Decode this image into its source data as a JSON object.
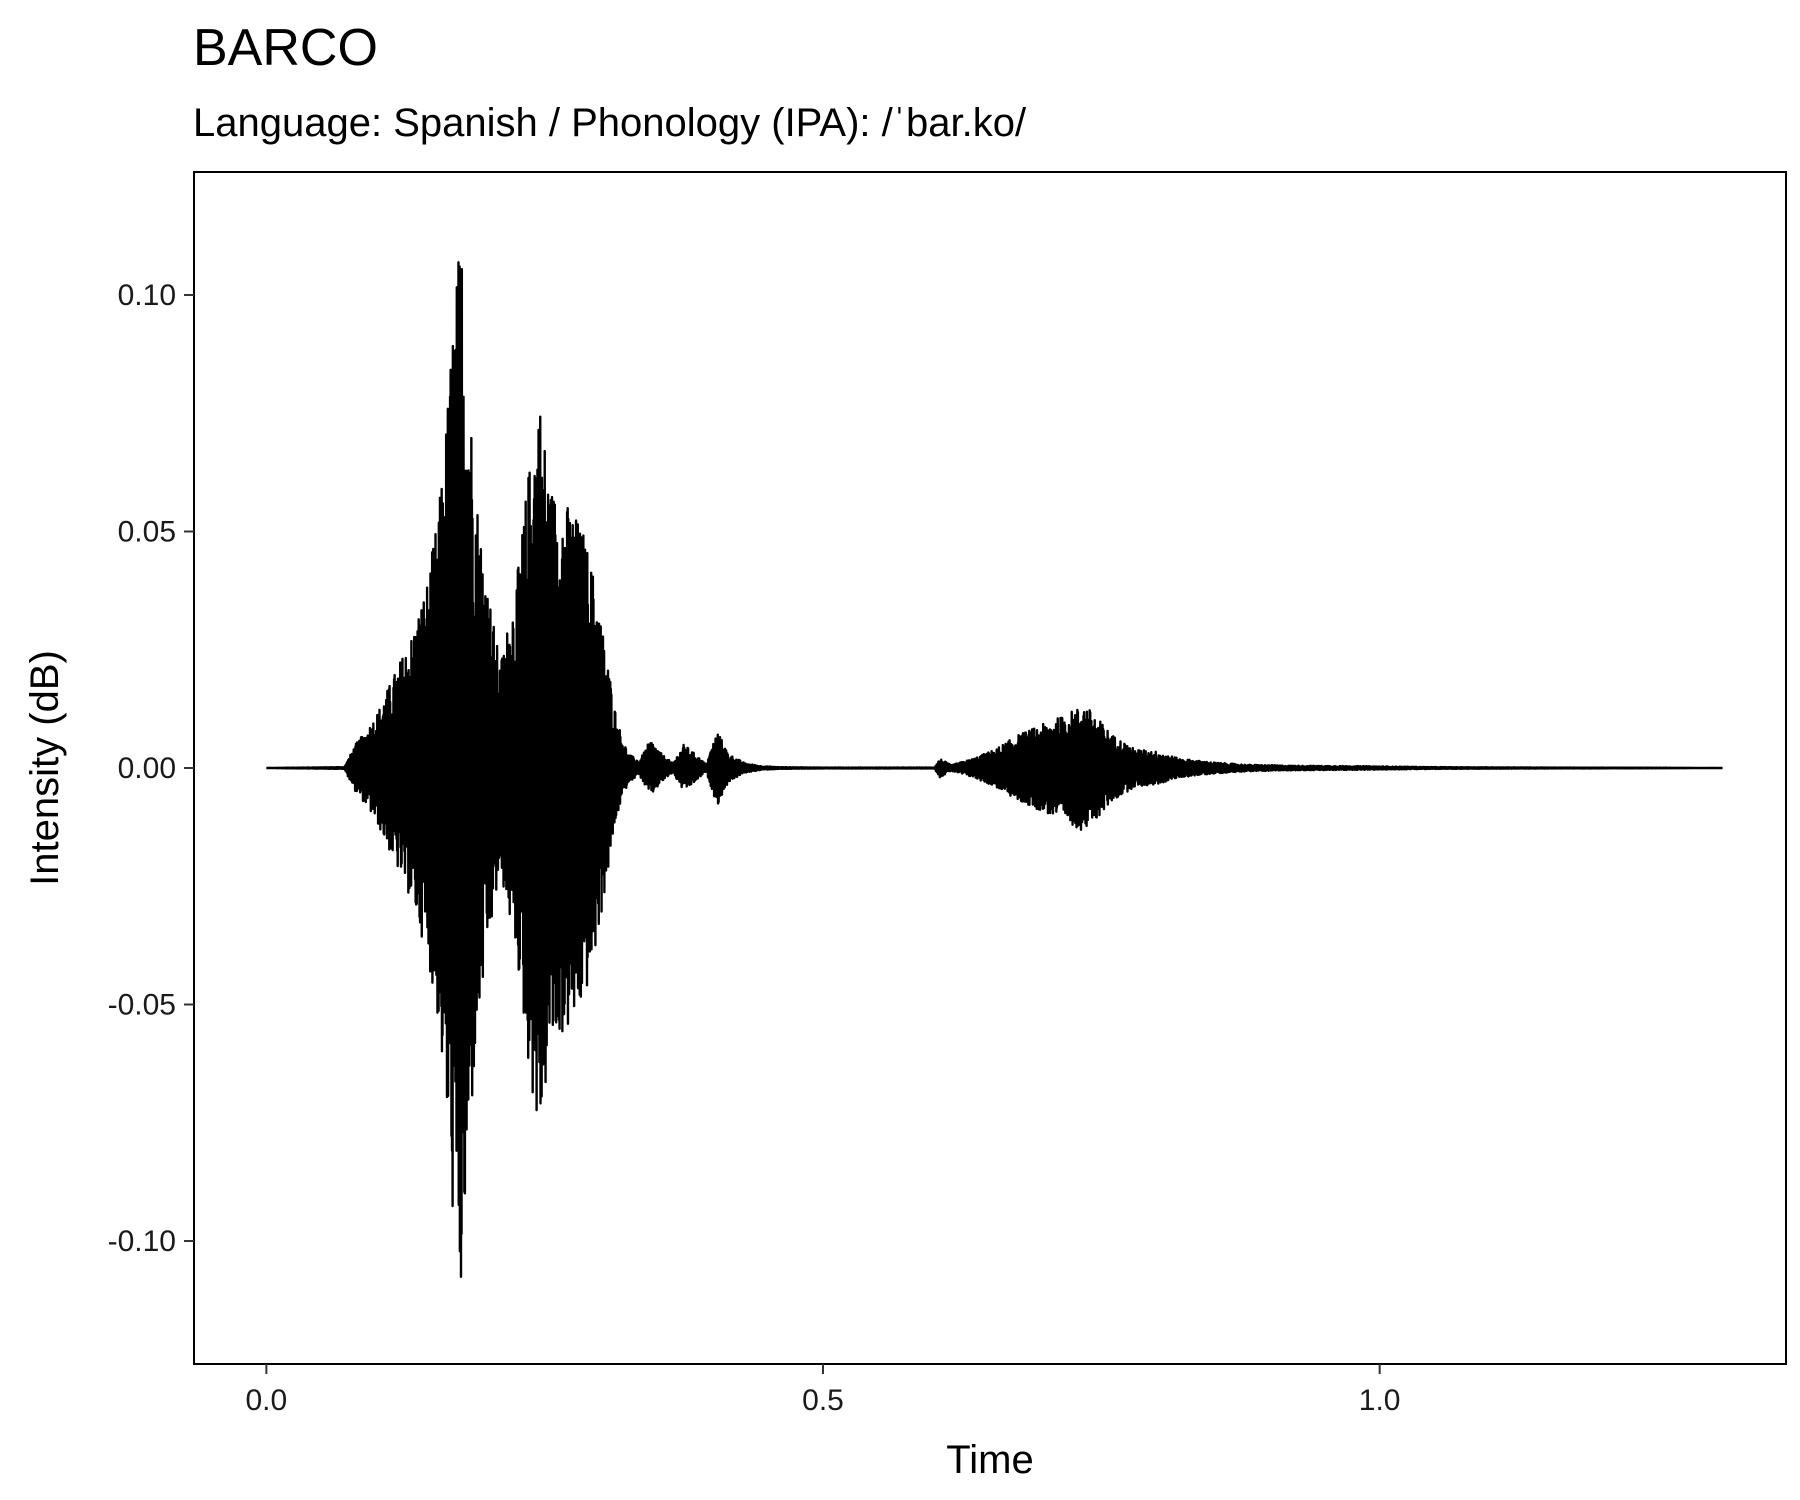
{
  "chart_data": {
    "type": "line",
    "title": "BARCO",
    "subtitle": "Language: Spanish / Phonology (IPA): /ˈbar.ko/",
    "xlabel": "Time",
    "ylabel": "Intensity (dB)",
    "xlim": [
      -0.065,
      1.365
    ],
    "ylim": [
      -0.126,
      0.126
    ],
    "x_ticks": [
      {
        "value": 0.0,
        "label": "0.0"
      },
      {
        "value": 0.5,
        "label": "0.5"
      },
      {
        "value": 1.0,
        "label": "1.0"
      }
    ],
    "y_ticks": [
      {
        "value": 0.1,
        "label": "0.10"
      },
      {
        "value": 0.05,
        "label": "0.05"
      },
      {
        "value": 0.0,
        "label": "0.00"
      },
      {
        "value": -0.05,
        "label": "-0.05"
      },
      {
        "value": -0.1,
        "label": "-0.10"
      }
    ],
    "grid": false,
    "series": [
      {
        "color": "#000000",
        "envelope": [
          [
            0.0,
            0.0
          ],
          [
            0.07,
            0.0002
          ],
          [
            0.08,
            0.005
          ],
          [
            0.09,
            0.008
          ],
          [
            0.1,
            0.012
          ],
          [
            0.115,
            0.02
          ],
          [
            0.13,
            0.028
          ],
          [
            0.145,
            0.04
          ],
          [
            0.155,
            0.055
          ],
          [
            0.162,
            0.075
          ],
          [
            0.168,
            0.097
          ],
          [
            0.175,
            0.115
          ],
          [
            0.18,
            0.09
          ],
          [
            0.188,
            0.06
          ],
          [
            0.198,
            0.04
          ],
          [
            0.21,
            0.022
          ],
          [
            0.225,
            0.04
          ],
          [
            0.235,
            0.062
          ],
          [
            0.245,
            0.08
          ],
          [
            0.255,
            0.06
          ],
          [
            0.265,
            0.057
          ],
          [
            0.275,
            0.055
          ],
          [
            0.285,
            0.05
          ],
          [
            0.295,
            0.04
          ],
          [
            0.305,
            0.025
          ],
          [
            0.315,
            0.01
          ],
          [
            0.325,
            0.003
          ],
          [
            0.335,
            0.0015
          ],
          [
            0.345,
            0.006
          ],
          [
            0.355,
            0.003
          ],
          [
            0.365,
            0.001
          ],
          [
            0.375,
            0.005
          ],
          [
            0.385,
            0.003
          ],
          [
            0.395,
            0.0008
          ],
          [
            0.405,
            0.008
          ],
          [
            0.415,
            0.003
          ],
          [
            0.43,
            0.001
          ],
          [
            0.445,
            0.0004
          ],
          [
            0.46,
            0.0002
          ],
          [
            0.5,
            0.0001
          ],
          [
            0.6,
            0.0001
          ],
          [
            0.605,
            0.002
          ],
          [
            0.615,
            0.0006
          ],
          [
            0.635,
            0.002
          ],
          [
            0.655,
            0.004
          ],
          [
            0.675,
            0.007
          ],
          [
            0.695,
            0.009
          ],
          [
            0.715,
            0.011
          ],
          [
            0.735,
            0.0135
          ],
          [
            0.745,
            0.011
          ],
          [
            0.76,
            0.007
          ],
          [
            0.78,
            0.004
          ],
          [
            0.8,
            0.0035
          ],
          [
            0.82,
            0.002
          ],
          [
            0.85,
            0.0012
          ],
          [
            0.88,
            0.0007
          ],
          [
            0.92,
            0.0005
          ],
          [
            0.98,
            0.0004
          ],
          [
            1.05,
            0.0002
          ],
          [
            1.15,
            0.0001
          ],
          [
            1.25,
            5e-05
          ],
          [
            1.308,
            0.0
          ]
        ]
      }
    ]
  }
}
